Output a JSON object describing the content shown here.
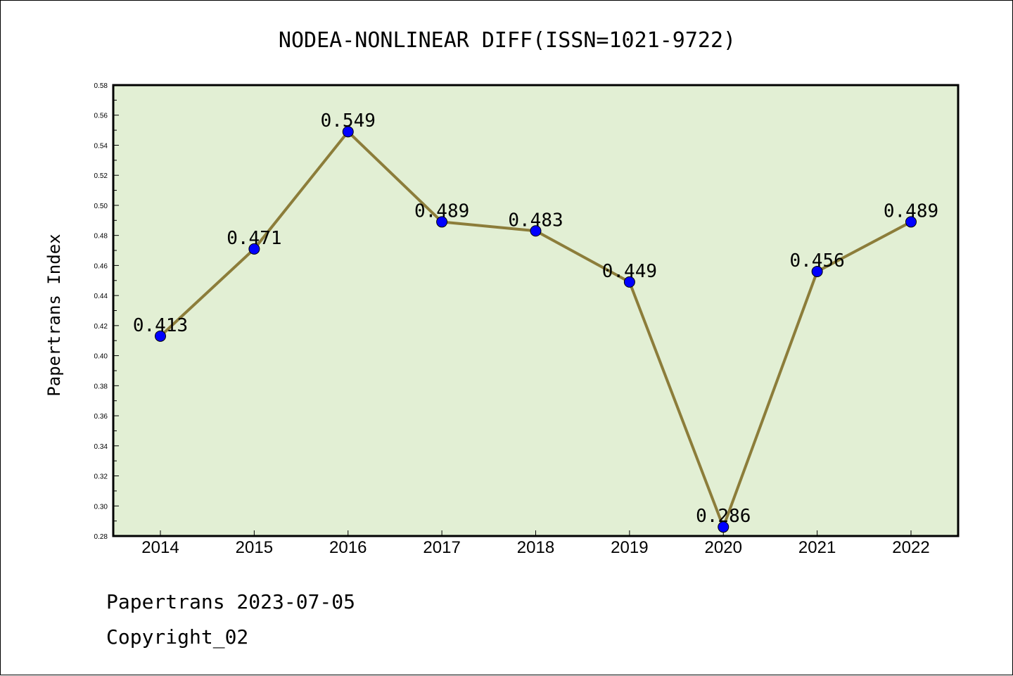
{
  "chart_data": {
    "type": "line",
    "title": "NODEA-NONLINEAR DIFF(ISSN=1021-9722)",
    "xlabel": "",
    "ylabel": "Papertrans Index",
    "categories": [
      "2014",
      "2015",
      "2016",
      "2017",
      "2018",
      "2019",
      "2020",
      "2021",
      "2022"
    ],
    "series": [
      {
        "values": [
          0.413,
          0.471,
          0.549,
          0.489,
          0.483,
          0.449,
          0.286,
          0.456,
          0.489
        ],
        "data_labels": [
          "0.413",
          "0.471",
          "0.549",
          "0.489",
          "0.483",
          "0.449",
          "0.286",
          "0.456",
          "0.489"
        ],
        "line_color": "#8c7d3a",
        "marker_color": "#0000ff"
      }
    ],
    "ylim": [
      0.28,
      0.58
    ],
    "yticks": [
      "0.28",
      "0.30",
      "0.32",
      "0.34",
      "0.36",
      "0.38",
      "0.40",
      "0.42",
      "0.44",
      "0.46",
      "0.48",
      "0.50",
      "0.52",
      "0.54",
      "0.56",
      "0.58"
    ],
    "grid": false,
    "plot_background": "#e2efd4"
  },
  "footer": {
    "line1": "Papertrans 2023-07-05",
    "line2": "Copyright_02"
  }
}
